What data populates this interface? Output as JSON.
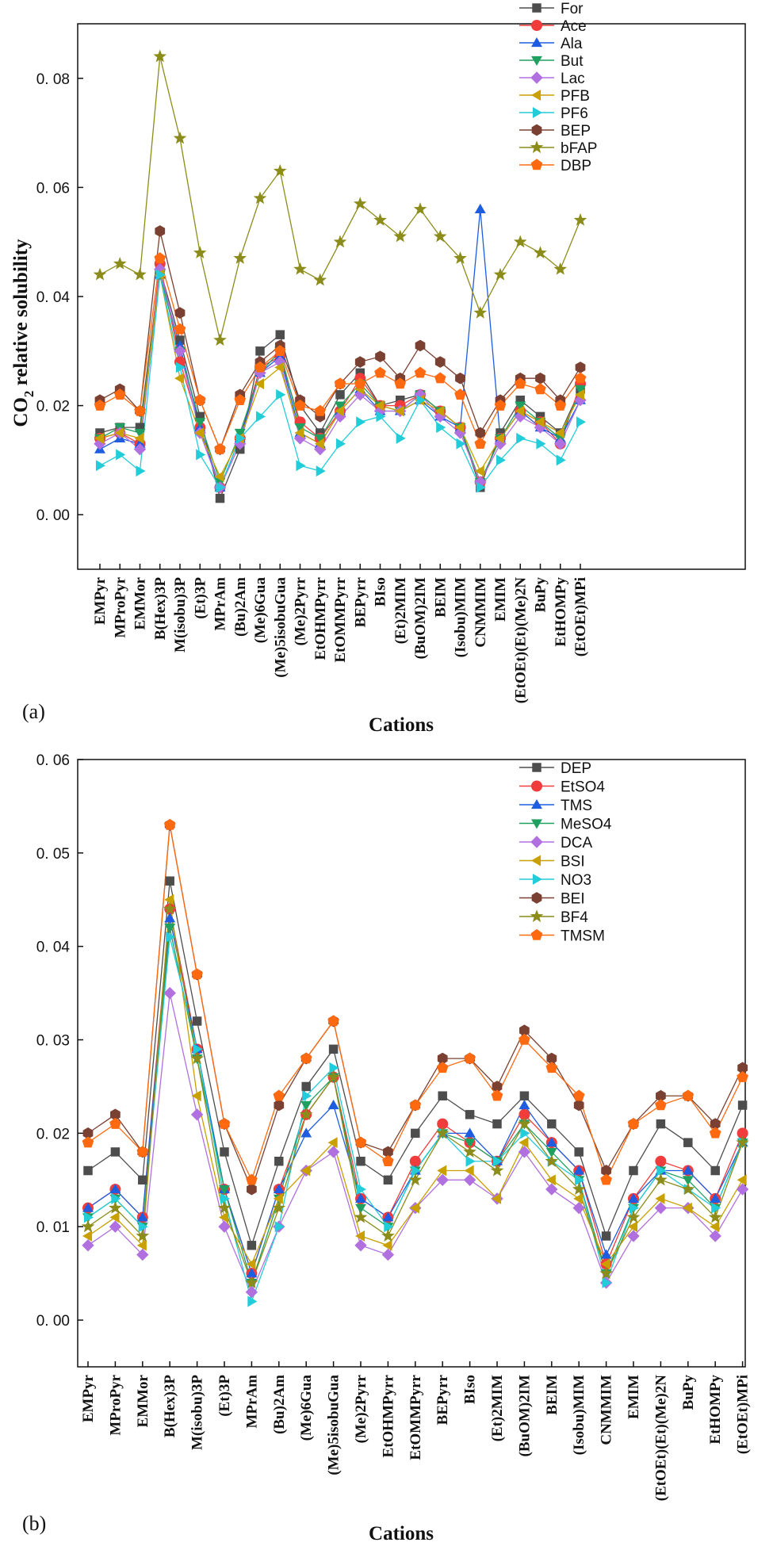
{
  "colors": {
    "For": "#4d4d4d",
    "Ace": "#f23c3c",
    "Ala": "#1f5de0",
    "But": "#20a060",
    "Lac": "#b070e0",
    "PFB": "#c8a000",
    "PF6": "#22ccd8",
    "BEP": "#7a4032",
    "bFAP": "#8c8c1a",
    "DBP": "#ff6a10",
    "DEP": "#4d4d4d",
    "EtSO4": "#f23c3c",
    "TMS": "#1f5de0",
    "MeSO4": "#20a060",
    "DCA": "#b070e0",
    "BSI": "#c8a000",
    "NO3": "#22ccd8",
    "BEI": "#7a4032",
    "BF4": "#8c8c1a",
    "TMSM": "#ff6a10"
  },
  "chart_data": [
    {
      "type": "line",
      "panel_label": "(a)",
      "ylabel_main": "CO",
      "ylabel_sub": "2",
      "ylabel_rest": " relative solubility",
      "xlabel": "Cations",
      "ylim": [
        -0.01,
        0.09
      ],
      "yticks": [
        0.0,
        0.02,
        0.04,
        0.06,
        0.08
      ],
      "ytick_labels": [
        "0. 00",
        "0. 02",
        "0. 04",
        "0. 06",
        "0. 08"
      ],
      "categories": [
        "EMPyr",
        "MProPyr",
        "EMMor",
        "B(Hex)3P",
        "M(isobu)3P",
        "(Et)3P",
        "MPrAm",
        "(Bu)2Am",
        "(Me)6Gua",
        "(Me)5isobuGua",
        "(Me)2Pyrr",
        "EtOHMPyrr",
        "EtOMMPyrr",
        "BEPyrr",
        "BIso",
        "(Et)2MIM",
        "(BuOM)2IM",
        "BEIM",
        "(Isobu)MIM",
        "CNMMIM",
        "EMIM",
        "(EtOEt)(Et)(Me)2N",
        "BuPy",
        "EtHOMPy",
        "(EtOEt)MPi"
      ],
      "series": [
        {
          "name": "For",
          "marker": "square",
          "values": [
            0.015,
            0.016,
            0.016,
            0.045,
            0.032,
            0.018,
            0.003,
            0.012,
            0.03,
            0.033,
            0.02,
            0.015,
            0.022,
            0.026,
            0.02,
            0.021,
            0.022,
            0.019,
            0.016,
            0.005,
            0.015,
            0.021,
            0.018,
            0.015,
            0.023
          ]
        },
        {
          "name": "Ace",
          "marker": "circle",
          "values": [
            0.014,
            0.015,
            0.013,
            0.046,
            0.028,
            0.016,
            0.005,
            0.014,
            0.027,
            0.029,
            0.017,
            0.014,
            0.019,
            0.025,
            0.02,
            0.02,
            0.022,
            0.019,
            0.016,
            0.006,
            0.014,
            0.019,
            0.017,
            0.013,
            0.024
          ]
        },
        {
          "name": "Ala",
          "marker": "triangle-up",
          "values": [
            0.012,
            0.014,
            0.013,
            0.044,
            0.031,
            0.016,
            0.005,
            0.014,
            0.026,
            0.029,
            0.015,
            0.013,
            0.019,
            0.023,
            0.019,
            0.019,
            0.021,
            0.018,
            0.016,
            0.056,
            0.014,
            0.019,
            0.016,
            0.014,
            0.021
          ]
        },
        {
          "name": "But",
          "marker": "triangle-down",
          "values": [
            0.014,
            0.016,
            0.015,
            0.044,
            0.03,
            0.017,
            0.006,
            0.015,
            0.026,
            0.03,
            0.016,
            0.014,
            0.02,
            0.024,
            0.02,
            0.019,
            0.022,
            0.019,
            0.016,
            0.006,
            0.014,
            0.02,
            0.017,
            0.014,
            0.023
          ]
        },
        {
          "name": "Lac",
          "marker": "diamond",
          "values": [
            0.013,
            0.015,
            0.012,
            0.045,
            0.03,
            0.015,
            0.005,
            0.013,
            0.026,
            0.028,
            0.014,
            0.012,
            0.018,
            0.022,
            0.019,
            0.019,
            0.022,
            0.018,
            0.015,
            0.006,
            0.013,
            0.018,
            0.016,
            0.013,
            0.021
          ]
        },
        {
          "name": "PFB",
          "marker": "triangle-left",
          "values": [
            0.014,
            0.015,
            0.014,
            0.044,
            0.025,
            0.015,
            0.007,
            0.014,
            0.024,
            0.027,
            0.015,
            0.013,
            0.019,
            0.023,
            0.02,
            0.019,
            0.021,
            0.019,
            0.016,
            0.008,
            0.014,
            0.019,
            0.017,
            0.015,
            0.022
          ]
        },
        {
          "name": "PF6",
          "marker": "triangle-right",
          "values": [
            0.009,
            0.011,
            0.008,
            0.044,
            0.027,
            0.011,
            0.005,
            0.014,
            0.018,
            0.022,
            0.009,
            0.008,
            0.013,
            0.017,
            0.018,
            0.014,
            0.021,
            0.016,
            0.013,
            0.005,
            0.01,
            0.014,
            0.013,
            0.01,
            0.017
          ]
        },
        {
          "name": "BEP",
          "marker": "hexagon",
          "values": [
            0.021,
            0.023,
            0.019,
            0.052,
            0.037,
            0.021,
            0.012,
            0.022,
            0.028,
            0.031,
            0.021,
            0.018,
            0.024,
            0.028,
            0.029,
            0.025,
            0.031,
            0.028,
            0.025,
            0.015,
            0.021,
            0.025,
            0.025,
            0.021,
            0.027
          ]
        },
        {
          "name": "bFAP",
          "marker": "star",
          "values": [
            0.044,
            0.046,
            0.044,
            0.084,
            0.069,
            0.048,
            0.032,
            0.047,
            0.058,
            0.063,
            0.045,
            0.043,
            0.05,
            0.057,
            0.054,
            0.051,
            0.056,
            0.051,
            0.047,
            0.037,
            0.044,
            0.05,
            0.048,
            0.045,
            0.054
          ]
        },
        {
          "name": "DBP",
          "marker": "pentagon",
          "values": [
            0.02,
            0.022,
            0.019,
            0.047,
            0.034,
            0.021,
            0.012,
            0.021,
            0.027,
            0.03,
            0.02,
            0.019,
            0.024,
            0.024,
            0.026,
            0.024,
            0.026,
            0.025,
            0.022,
            0.013,
            0.02,
            0.024,
            0.023,
            0.02,
            0.025
          ]
        }
      ]
    },
    {
      "type": "line",
      "panel_label": "(b)",
      "xlabel": "Cations",
      "ylim": [
        -0.005,
        0.06
      ],
      "yticks": [
        0.0,
        0.01,
        0.02,
        0.03,
        0.04,
        0.05,
        0.06
      ],
      "ytick_labels": [
        "0. 00",
        "0. 01",
        "0. 02",
        "0. 03",
        "0. 04",
        "0. 05",
        "0. 06"
      ],
      "categories": [
        "EMPyr",
        "MProPyr",
        "EMMor",
        "B(Hex)3P",
        "M(isobu)3P",
        "(Et)3P",
        "MPrAm",
        "(Bu)2Am",
        "(Me)6Gua",
        "(Me)5isobuGua",
        "(Me)2Pyrr",
        "EtOHMPyrr",
        "EtOMMPyrr",
        "BEPyrr",
        "BIso",
        "(Et)2MIM",
        "(BuOM)2IM",
        "BEIM",
        "(Isobu)MIM",
        "CNMMIM",
        "EMIM",
        "(EtOEt)(Et)(Me)2N",
        "BuPy",
        "EtHOMPy",
        "(EtOEt)MPi"
      ],
      "series": [
        {
          "name": "DEP",
          "marker": "square",
          "values": [
            0.016,
            0.018,
            0.015,
            0.047,
            0.032,
            0.018,
            0.008,
            0.017,
            0.025,
            0.029,
            0.017,
            0.015,
            0.02,
            0.024,
            0.022,
            0.021,
            0.024,
            0.021,
            0.018,
            0.009,
            0.016,
            0.021,
            0.019,
            0.016,
            0.023
          ]
        },
        {
          "name": "EtSO4",
          "marker": "circle",
          "values": [
            0.012,
            0.014,
            0.011,
            0.044,
            0.029,
            0.014,
            0.005,
            0.014,
            0.022,
            0.026,
            0.013,
            0.011,
            0.017,
            0.021,
            0.019,
            0.017,
            0.022,
            0.019,
            0.016,
            0.006,
            0.013,
            0.017,
            0.016,
            0.013,
            0.02
          ]
        },
        {
          "name": "TMS",
          "marker": "triangle-up",
          "values": [
            0.012,
            0.014,
            0.011,
            0.043,
            0.029,
            0.014,
            0.005,
            0.014,
            0.02,
            0.023,
            0.013,
            0.011,
            0.016,
            0.02,
            0.02,
            0.017,
            0.023,
            0.019,
            0.016,
            0.007,
            0.013,
            0.016,
            0.016,
            0.013,
            0.019
          ]
        },
        {
          "name": "MeSO4",
          "marker": "triangle-down",
          "values": [
            0.011,
            0.013,
            0.01,
            0.042,
            0.028,
            0.014,
            0.004,
            0.013,
            0.023,
            0.026,
            0.012,
            0.01,
            0.016,
            0.02,
            0.019,
            0.017,
            0.021,
            0.018,
            0.015,
            0.005,
            0.012,
            0.016,
            0.015,
            0.012,
            0.019
          ]
        },
        {
          "name": "DCA",
          "marker": "diamond",
          "values": [
            0.008,
            0.01,
            0.007,
            0.035,
            0.022,
            0.01,
            0.003,
            0.01,
            0.016,
            0.018,
            0.008,
            0.007,
            0.012,
            0.015,
            0.015,
            0.013,
            0.018,
            0.014,
            0.012,
            0.004,
            0.009,
            0.012,
            0.012,
            0.009,
            0.014
          ]
        },
        {
          "name": "BSI",
          "marker": "triangle-left",
          "values": [
            0.009,
            0.011,
            0.008,
            0.045,
            0.024,
            0.011,
            0.006,
            0.013,
            0.016,
            0.019,
            0.009,
            0.008,
            0.012,
            0.016,
            0.016,
            0.013,
            0.019,
            0.015,
            0.013,
            0.006,
            0.01,
            0.013,
            0.012,
            0.01,
            0.015
          ]
        },
        {
          "name": "NO3",
          "marker": "triangle-right",
          "values": [
            0.011,
            0.013,
            0.01,
            0.041,
            0.029,
            0.013,
            0.002,
            0.01,
            0.024,
            0.027,
            0.014,
            0.01,
            0.016,
            0.02,
            0.017,
            0.017,
            0.02,
            0.017,
            0.015,
            0.004,
            0.012,
            0.016,
            0.014,
            0.012,
            0.019
          ]
        },
        {
          "name": "BEI",
          "marker": "hexagon",
          "values": [
            0.02,
            0.022,
            0.018,
            0.053,
            0.037,
            0.021,
            0.014,
            0.023,
            0.028,
            0.032,
            0.019,
            0.018,
            0.023,
            0.028,
            0.028,
            0.025,
            0.031,
            0.028,
            0.023,
            0.016,
            0.021,
            0.024,
            0.024,
            0.021,
            0.027
          ]
        },
        {
          "name": "BF4",
          "marker": "star",
          "values": [
            0.01,
            0.012,
            0.009,
            0.044,
            0.028,
            0.012,
            0.004,
            0.012,
            0.022,
            0.026,
            0.011,
            0.009,
            0.015,
            0.02,
            0.018,
            0.016,
            0.021,
            0.017,
            0.014,
            0.005,
            0.011,
            0.015,
            0.014,
            0.011,
            0.019
          ]
        },
        {
          "name": "TMSM",
          "marker": "pentagon",
          "values": [
            0.019,
            0.021,
            0.018,
            0.053,
            0.037,
            0.021,
            0.015,
            0.024,
            0.028,
            0.032,
            0.019,
            0.017,
            0.023,
            0.027,
            0.028,
            0.024,
            0.03,
            0.027,
            0.024,
            0.015,
            0.021,
            0.023,
            0.024,
            0.02,
            0.026
          ]
        }
      ]
    }
  ]
}
